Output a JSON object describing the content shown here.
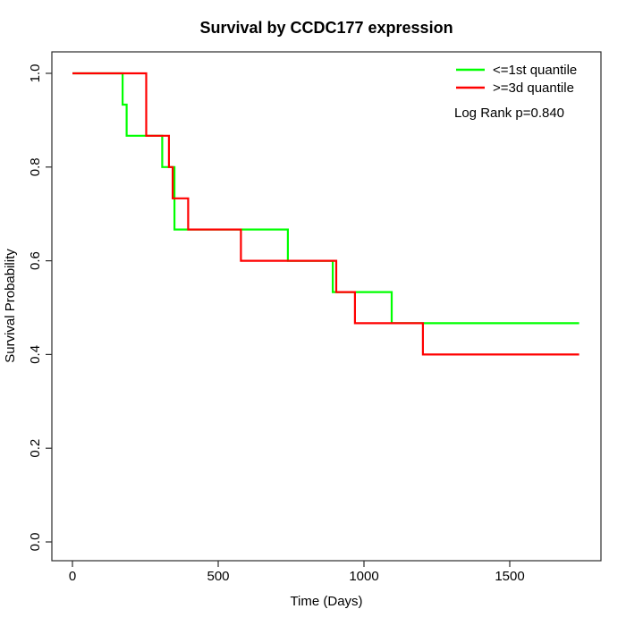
{
  "figure": {
    "background_color": "#FFFFFF",
    "text_color": "#000000"
  },
  "chart_data": {
    "type": "line",
    "subtype": "kaplan-meier-survival-step",
    "title": "Survival by CCDC177 expression",
    "xlabel": "Time (Days)",
    "ylabel": "Survival Probability",
    "xlim": [
      0,
      1738
    ],
    "ylim": [
      0.0,
      1.0
    ],
    "grid": false,
    "x_ticks": {
      "values": [
        0,
        500,
        1000,
        1500
      ],
      "labels": [
        "0",
        "500",
        "1000",
        "1500"
      ]
    },
    "y_ticks": {
      "values": [
        0.0,
        0.2,
        0.4,
        0.6,
        0.8,
        1.0
      ],
      "labels": [
        "0.0",
        "0.2",
        "0.4",
        "0.6",
        "0.8",
        "1.0"
      ]
    },
    "legend": {
      "position": "top-right",
      "border": false
    },
    "annotation": "Log Rank p=0.840",
    "series": [
      {
        "name": "<=1st quantile",
        "color": "#00FF00",
        "points": [
          [
            0,
            1.0
          ],
          [
            172,
            1.0
          ],
          [
            172,
            0.9333
          ],
          [
            186,
            0.9333
          ],
          [
            186,
            0.8667
          ],
          [
            308,
            0.8667
          ],
          [
            308,
            0.8
          ],
          [
            350,
            0.8
          ],
          [
            350,
            0.6667
          ],
          [
            739,
            0.6667
          ],
          [
            739,
            0.6
          ],
          [
            893,
            0.6
          ],
          [
            893,
            0.5333
          ],
          [
            1095,
            0.5333
          ],
          [
            1095,
            0.4667
          ],
          [
            1738,
            0.4667
          ]
        ]
      },
      {
        "name": ">=3d quantile",
        "color": "#FF0000",
        "points": [
          [
            0,
            1.0
          ],
          [
            253,
            1.0
          ],
          [
            253,
            0.8667
          ],
          [
            331,
            0.8667
          ],
          [
            331,
            0.8
          ],
          [
            344,
            0.8
          ],
          [
            344,
            0.7333
          ],
          [
            397,
            0.7333
          ],
          [
            397,
            0.6667
          ],
          [
            578,
            0.6667
          ],
          [
            578,
            0.6
          ],
          [
            905,
            0.6
          ],
          [
            905,
            0.5333
          ],
          [
            969,
            0.5333
          ],
          [
            969,
            0.4667
          ],
          [
            1202,
            0.4667
          ],
          [
            1202,
            0.4
          ],
          [
            1738,
            0.4
          ]
        ]
      }
    ]
  }
}
